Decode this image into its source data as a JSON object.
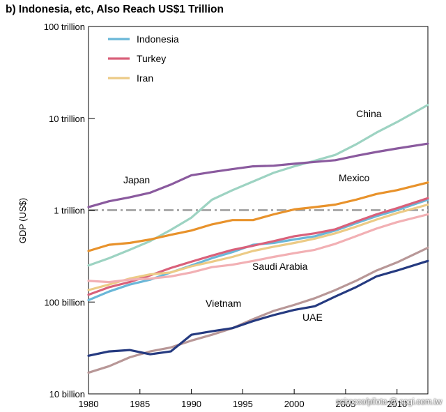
{
  "title": "b) Indonesia, etc, Also Reach US$1 Trillion",
  "watermark": "scirocco/pilota @ sogi.com.tw",
  "chart_data": {
    "type": "line",
    "title": "b) Indonesia, etc, Also Reach US$1 Trillion",
    "xlabel": "",
    "ylabel": "GDP (US$)",
    "yscale": "log",
    "xlim": [
      1980,
      2013
    ],
    "ylim": [
      10,
      100000
    ],
    "units": "billion US$",
    "x_ticks": [
      1980,
      1985,
      1990,
      1995,
      2000,
      2005,
      2010
    ],
    "x_tick_labels": [
      "1980",
      "1985",
      "1990",
      "1995",
      "2000",
      "2005",
      "2010"
    ],
    "y_ticks": [
      10,
      100,
      1000,
      10000,
      100000
    ],
    "y_tick_labels": [
      "10 billion",
      "100 billion",
      "1 trillion",
      "10 trillion",
      "100 trillion"
    ],
    "reference_line": {
      "value": 1000,
      "style": "dash-dot",
      "color": "#aaaaaa"
    },
    "legend": {
      "position": "top-left",
      "entries": [
        "Indonesia",
        "Turkey",
        "Iran"
      ]
    },
    "series": [
      {
        "name": "China",
        "color": "#9dd3c2",
        "label": "China",
        "x": [
          1980,
          1982,
          1984,
          1986,
          1988,
          1990,
          1992,
          1994,
          1996,
          1998,
          2000,
          2002,
          2004,
          2006,
          2008,
          2010,
          2013
        ],
        "y": [
          250,
          300,
          370,
          460,
          610,
          830,
          1300,
          1650,
          2050,
          2550,
          3000,
          3450,
          4000,
          5200,
          7000,
          9100,
          14000
        ]
      },
      {
        "name": "Japan",
        "color": "#8a5a9e",
        "label": "Japan",
        "x": [
          1980,
          1982,
          1984,
          1986,
          1988,
          1990,
          1992,
          1994,
          1996,
          1998,
          2000,
          2002,
          2004,
          2006,
          2008,
          2010,
          2013
        ],
        "y": [
          1080,
          1250,
          1380,
          1550,
          1900,
          2400,
          2600,
          2800,
          3000,
          3050,
          3200,
          3350,
          3500,
          3900,
          4300,
          4700,
          5300
        ]
      },
      {
        "name": "Mexico",
        "color": "#e8922b",
        "label": "Mexico",
        "x": [
          1980,
          1982,
          1984,
          1986,
          1988,
          1990,
          1992,
          1994,
          1996,
          1998,
          2000,
          2002,
          2004,
          2006,
          2008,
          2010,
          2013
        ],
        "y": [
          360,
          420,
          440,
          480,
          540,
          600,
          700,
          780,
          780,
          900,
          1020,
          1080,
          1150,
          1300,
          1500,
          1650,
          2000
        ]
      },
      {
        "name": "Indonesia",
        "color": "#6ab7d8",
        "label": "",
        "x": [
          1980,
          1982,
          1984,
          1986,
          1988,
          1990,
          1992,
          1994,
          1996,
          1998,
          2000,
          2002,
          2004,
          2006,
          2008,
          2010,
          2013
        ],
        "y": [
          105,
          130,
          155,
          175,
          210,
          250,
          300,
          350,
          420,
          440,
          480,
          520,
          600,
          720,
          860,
          1000,
          1300
        ]
      },
      {
        "name": "Turkey",
        "color": "#d9607a",
        "label": "",
        "x": [
          1980,
          1982,
          1984,
          1986,
          1988,
          1990,
          1992,
          1994,
          1996,
          1998,
          2000,
          2002,
          2004,
          2006,
          2008,
          2010,
          2013
        ],
        "y": [
          120,
          145,
          165,
          195,
          235,
          275,
          320,
          370,
          410,
          460,
          520,
          560,
          620,
          750,
          900,
          1050,
          1350
        ]
      },
      {
        "name": "Iran",
        "color": "#eccb86",
        "label": "",
        "x": [
          1980,
          1982,
          1984,
          1986,
          1988,
          1990,
          1992,
          1994,
          1996,
          1998,
          2000,
          2002,
          2004,
          2006,
          2008,
          2010,
          2013
        ],
        "y": [
          135,
          155,
          180,
          200,
          210,
          245,
          275,
          310,
          360,
          400,
          440,
          490,
          560,
          660,
          790,
          930,
          1150
        ]
      },
      {
        "name": "Saudi Arabia",
        "color": "#f2b0b4",
        "label": "Saudi Arabia",
        "x": [
          1980,
          1982,
          1984,
          1986,
          1988,
          1990,
          1992,
          1994,
          1996,
          1998,
          2000,
          2002,
          2004,
          2006,
          2008,
          2010,
          2013
        ],
        "y": [
          170,
          165,
          175,
          180,
          190,
          210,
          240,
          255,
          280,
          310,
          340,
          370,
          430,
          520,
          630,
          740,
          900
        ]
      },
      {
        "name": "Vietnam",
        "color": "#b89797",
        "label": "Vietnam",
        "x": [
          1980,
          1982,
          1984,
          1986,
          1988,
          1990,
          1992,
          1994,
          1996,
          1998,
          2000,
          2002,
          2004,
          2006,
          2008,
          2010,
          2013
        ],
        "y": [
          17,
          20,
          25,
          29,
          32,
          38,
          44,
          52,
          65,
          80,
          93,
          110,
          135,
          170,
          220,
          270,
          390
        ]
      },
      {
        "name": "UAE",
        "color": "#253a80",
        "label": "UAE",
        "x": [
          1980,
          1982,
          1984,
          1986,
          1988,
          1990,
          1992,
          1994,
          1996,
          1998,
          2000,
          2002,
          2004,
          2006,
          2008,
          2010,
          2013
        ],
        "y": [
          26,
          29,
          30,
          27,
          29,
          44,
          48,
          52,
          62,
          72,
          82,
          90,
          115,
          145,
          190,
          220,
          280
        ]
      }
    ]
  }
}
